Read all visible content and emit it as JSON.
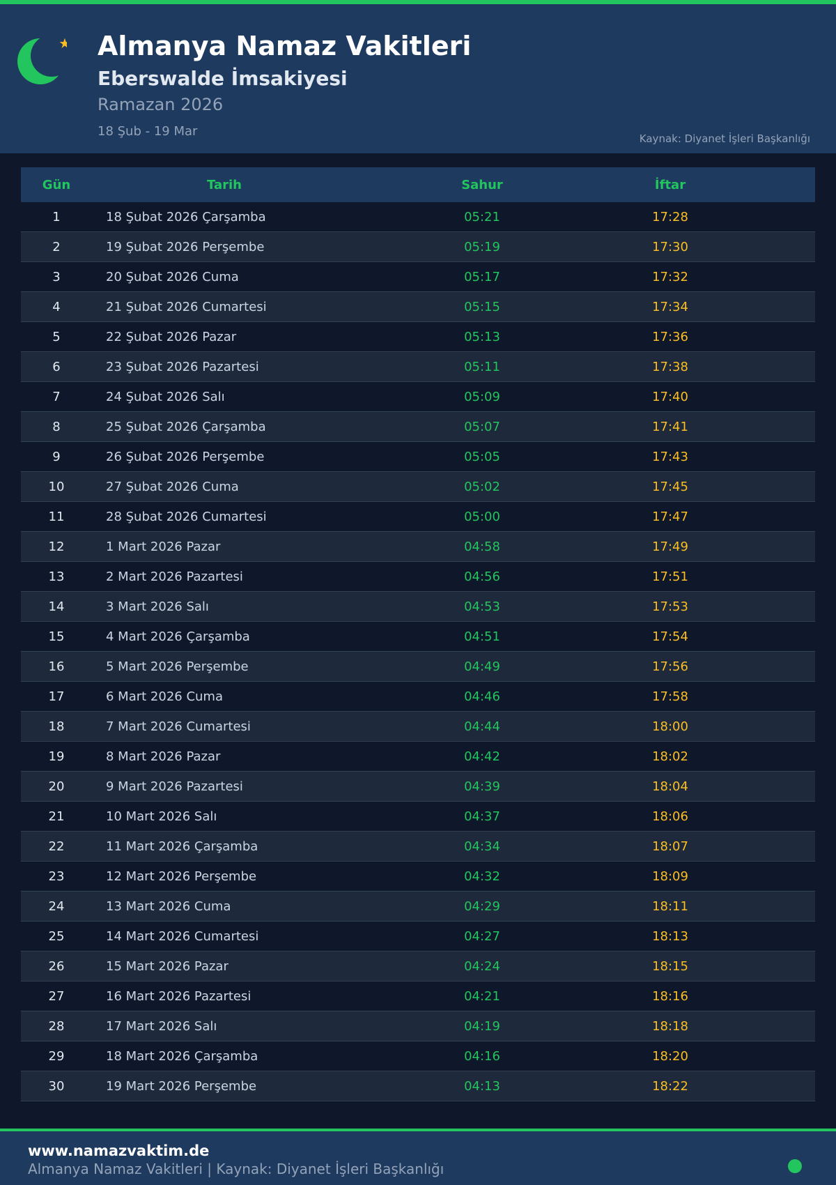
{
  "header": {
    "title": "Almanya Namaz Vakitleri",
    "subtitle": "Eberswalde İmsakiyesi",
    "ramadan": "Ramazan 2026",
    "range": "18 Şub - 19 Mar",
    "source": "Kaynak: Diyanet İşleri Başkanlığı",
    "icon": "crescent-star-icon"
  },
  "colors": {
    "accent": "#22c55e",
    "iftar": "#fbbf24",
    "header_bg": "#1e3a5f",
    "page_bg": "#0f172a"
  },
  "table": {
    "headers": [
      "Gün",
      "Tarih",
      "Sahur",
      "İftar"
    ],
    "rows": [
      [
        "1",
        "18 Şubat 2026 Çarşamba",
        "05:21",
        "17:28"
      ],
      [
        "2",
        "19 Şubat 2026 Perşembe",
        "05:19",
        "17:30"
      ],
      [
        "3",
        "20 Şubat 2026 Cuma",
        "05:17",
        "17:32"
      ],
      [
        "4",
        "21 Şubat 2026 Cumartesi",
        "05:15",
        "17:34"
      ],
      [
        "5",
        "22 Şubat 2026 Pazar",
        "05:13",
        "17:36"
      ],
      [
        "6",
        "23 Şubat 2026 Pazartesi",
        "05:11",
        "17:38"
      ],
      [
        "7",
        "24 Şubat 2026 Salı",
        "05:09",
        "17:40"
      ],
      [
        "8",
        "25 Şubat 2026 Çarşamba",
        "05:07",
        "17:41"
      ],
      [
        "9",
        "26 Şubat 2026 Perşembe",
        "05:05",
        "17:43"
      ],
      [
        "10",
        "27 Şubat 2026 Cuma",
        "05:02",
        "17:45"
      ],
      [
        "11",
        "28 Şubat 2026 Cumartesi",
        "05:00",
        "17:47"
      ],
      [
        "12",
        "1 Mart 2026 Pazar",
        "04:58",
        "17:49"
      ],
      [
        "13",
        "2 Mart 2026 Pazartesi",
        "04:56",
        "17:51"
      ],
      [
        "14",
        "3 Mart 2026 Salı",
        "04:53",
        "17:53"
      ],
      [
        "15",
        "4 Mart 2026 Çarşamba",
        "04:51",
        "17:54"
      ],
      [
        "16",
        "5 Mart 2026 Perşembe",
        "04:49",
        "17:56"
      ],
      [
        "17",
        "6 Mart 2026 Cuma",
        "04:46",
        "17:58"
      ],
      [
        "18",
        "7 Mart 2026 Cumartesi",
        "04:44",
        "18:00"
      ],
      [
        "19",
        "8 Mart 2026 Pazar",
        "04:42",
        "18:02"
      ],
      [
        "20",
        "9 Mart 2026 Pazartesi",
        "04:39",
        "18:04"
      ],
      [
        "21",
        "10 Mart 2026 Salı",
        "04:37",
        "18:06"
      ],
      [
        "22",
        "11 Mart 2026 Çarşamba",
        "04:34",
        "18:07"
      ],
      [
        "23",
        "12 Mart 2026 Perşembe",
        "04:32",
        "18:09"
      ],
      [
        "24",
        "13 Mart 2026 Cuma",
        "04:29",
        "18:11"
      ],
      [
        "25",
        "14 Mart 2026 Cumartesi",
        "04:27",
        "18:13"
      ],
      [
        "26",
        "15 Mart 2026 Pazar",
        "04:24",
        "18:15"
      ],
      [
        "27",
        "16 Mart 2026 Pazartesi",
        "04:21",
        "18:16"
      ],
      [
        "28",
        "17 Mart 2026 Salı",
        "04:19",
        "18:18"
      ],
      [
        "29",
        "18 Mart 2026 Çarşamba",
        "04:16",
        "18:20"
      ],
      [
        "30",
        "19 Mart 2026 Perşembe",
        "04:13",
        "18:22"
      ]
    ]
  },
  "footer": {
    "site": "www.namazvaktim.de",
    "text": "Almanya Namaz Vakitleri | Kaynak: Diyanet İşleri Başkanlığı",
    "status_icon": "green-dot-icon"
  }
}
